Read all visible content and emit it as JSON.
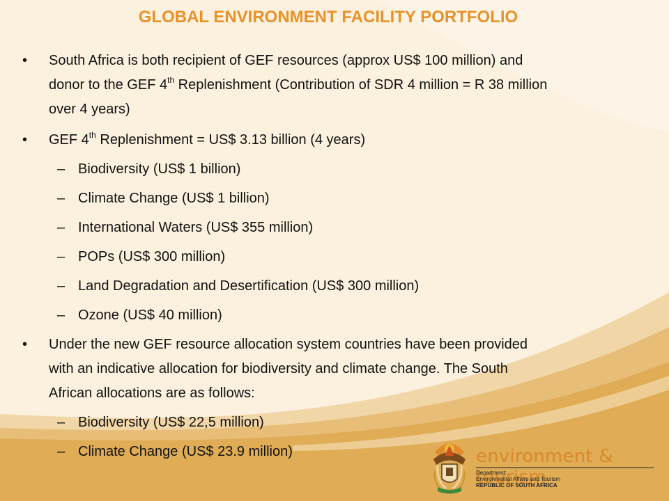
{
  "title": "GLOBAL ENVIRONMENT FACILITY PORTFOLIO",
  "bullets": [
    {
      "line1": "South Africa is both recipient of GEF resources (approx US$ 100 million) and",
      "line2_pre": "donor to the GEF 4",
      "line2_sup": "th",
      "line2_post": " Replenishment  (Contribution of SDR 4 million = R 38 million",
      "line3": "over 4 years)"
    },
    {
      "pre": "GEF 4",
      "sup": "th",
      "post": " Replenishment  = US$ 3.13 billion (4 years)",
      "sub": [
        "Biodiversity (US$ 1 billion)",
        "Climate Change (US$ 1 billion)",
        "International Waters (US$ 355 million)",
        "POPs (US$ 300 million)",
        "Land Degradation and Desertification (US$ 300 million)",
        "Ozone (US$ 40 million)"
      ]
    },
    {
      "line1": "Under the new GEF resource allocation system countries have been provided",
      "line2": "with an indicative allocation for biodiversity and climate change. The South",
      "line3": "African allocations are as follows:",
      "sub": [
        "Biodiversity (US$ 22,5 million)",
        "Climate Change (US$ 23.9 million)"
      ]
    }
  ],
  "bullet_glyph": "•",
  "dash_glyph": "–",
  "footer": {
    "brand": "environment & tourism",
    "dept_label": "Department:",
    "dept_name": "Environmental Affairs and Tourism",
    "country": "REPUBLIC OF SOUTH AFRICA"
  },
  "colors": {
    "title": "#e8922a",
    "background": "#fbf1de",
    "swoosh": "#e3b36a",
    "footer_band": "#e0ac55"
  },
  "icons": [
    "coat-of-arms-icon"
  ]
}
